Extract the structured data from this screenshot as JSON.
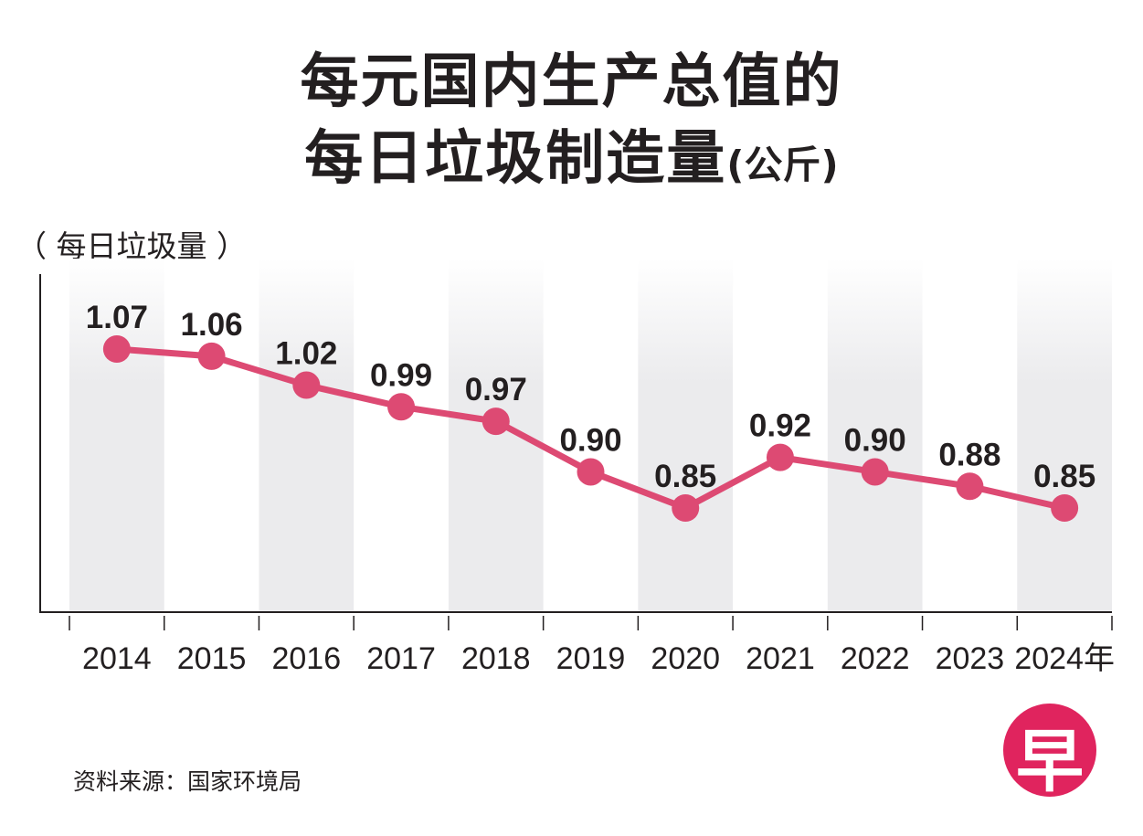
{
  "title": {
    "line1": "每元国内生产总值的",
    "line2": "每日垃圾制造量",
    "unit": "(公斤)"
  },
  "source": "资料来源：国家环境局",
  "logo": {
    "glyph": "早"
  },
  "colors": {
    "line": "#dd4a73",
    "marker": "#dd4a73",
    "band": "#ebebed",
    "axis": "#231f20",
    "text": "#231f20",
    "logo": "#e0245e"
  },
  "chart_data": {
    "type": "line",
    "title": "每元国内生产总值的每日垃圾制造量(公斤)",
    "ylabel": "（ 每日垃圾量 ）",
    "xlabel": "",
    "categories": [
      "2014",
      "2015",
      "2016",
      "2017",
      "2018",
      "2019",
      "2020",
      "2021",
      "2022",
      "2023",
      "2024年"
    ],
    "series": [
      {
        "name": "每日垃圾量",
        "values": [
          1.07,
          1.06,
          1.02,
          0.99,
          0.97,
          0.9,
          0.85,
          0.92,
          0.9,
          0.88,
          0.85
        ],
        "labels": [
          "1.07",
          "1.06",
          "1.02",
          "0.99",
          "0.97",
          "0.90",
          "0.85",
          "0.92",
          "0.90",
          "0.88",
          "0.85"
        ]
      }
    ],
    "ylim": [
      0.5,
      1.15
    ],
    "grid": false,
    "legend": "none"
  }
}
